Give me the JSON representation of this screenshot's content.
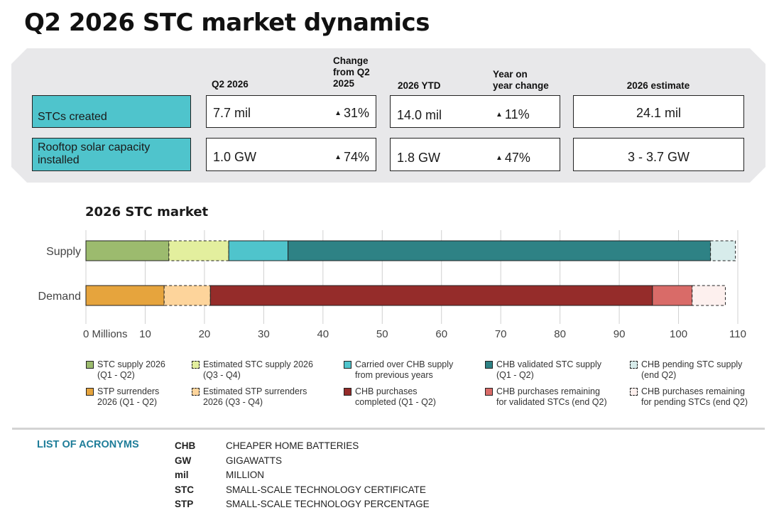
{
  "title": "Q2 2026 STC market dynamics",
  "summary": {
    "headers": {
      "q2": "Q2 2026",
      "change_q2": [
        "Change",
        "from Q2",
        "2025"
      ],
      "ytd": "2026 YTD",
      "yoy": [
        "Year on",
        "year change"
      ],
      "estimate": "2026 estimate"
    },
    "rows": [
      {
        "label": "STCs created",
        "q2": "7.7 mil",
        "q2_change": "31%",
        "ytd": "14.0 mil",
        "yoy": "11%",
        "estimate": "24.1 mil"
      },
      {
        "label": "Rooftop solar capacity installed",
        "q2": "1.0 GW",
        "q2_change": "74%",
        "ytd": "1.8 GW",
        "yoy": "47%",
        "estimate": "3 - 3.7 GW"
      }
    ],
    "up_icon": "triangle-up-icon"
  },
  "chart_data": {
    "type": "bar",
    "orientation": "horizontal",
    "stacked": true,
    "title": "2026 STC market",
    "categories": [
      "Supply",
      "Demand"
    ],
    "xlim": [
      0,
      110
    ],
    "xticks": [
      0,
      10,
      20,
      30,
      40,
      50,
      60,
      70,
      80,
      90,
      100,
      110
    ],
    "xtick_labels": [
      "0 Millions",
      "10",
      "20",
      "30",
      "40",
      "50",
      "60",
      "70",
      "80",
      "90",
      "100",
      "110"
    ],
    "grid": "vertical",
    "segments": [
      {
        "row": "Supply",
        "name": "STC supply 2026 (Q1 - Q2)",
        "value": 14.0,
        "color": "#9cbb6e",
        "dashed": false
      },
      {
        "row": "Supply",
        "name": "Estimated STC supply 2026 (Q3 - Q4)",
        "value": 10.1,
        "color": "#e3ef9e",
        "dashed": true
      },
      {
        "row": "Supply",
        "name": "Carried over CHB supply from previous years",
        "value": 10.0,
        "color": "#4fc4cc",
        "dashed": false
      },
      {
        "row": "Supply",
        "name": "CHB validated STC supply (Q1 - Q2)",
        "value": 71.3,
        "color": "#2e8285",
        "dashed": false
      },
      {
        "row": "Supply",
        "name": "CHB pending STC supply (end Q2)",
        "value": 4.2,
        "color": "#d7eceb",
        "dashed": true
      },
      {
        "row": "Demand",
        "name": "STP surrenders 2026 (Q1 - Q2)",
        "value": 13.2,
        "color": "#e6a43d",
        "dashed": false
      },
      {
        "row": "Demand",
        "name": "Estimated STP surrenders 2026 (Q3 - Q4)",
        "value": 7.8,
        "color": "#fdd49b",
        "dashed": true
      },
      {
        "row": "Demand",
        "name": "CHB purchases completed (Q1 - Q2)",
        "value": 74.6,
        "color": "#952c2a",
        "dashed": false
      },
      {
        "row": "Demand",
        "name": "CHB purchases remaining for validated STCs (end Q2)",
        "value": 6.7,
        "color": "#d96b68",
        "dashed": false
      },
      {
        "row": "Demand",
        "name": "CHB purchases remaining for pending STCs (end Q2)",
        "value": 5.6,
        "color": "#fdf0ee",
        "dashed": true
      }
    ]
  },
  "legend": [
    {
      "lines": [
        "STC supply 2026",
        "(Q1 - Q2)"
      ],
      "color": "#9cbb6e",
      "dashed": false
    },
    {
      "lines": [
        "Estimated STC supply 2026",
        "(Q3 - Q4)"
      ],
      "color": "#e3ef9e",
      "dashed": true
    },
    {
      "lines": [
        "Carried over CHB supply",
        "from previous years"
      ],
      "color": "#4fc4cc",
      "dashed": false
    },
    {
      "lines": [
        "CHB validated STC supply",
        "(Q1 - Q2)"
      ],
      "color": "#2e8285",
      "dashed": false
    },
    {
      "lines": [
        "CHB pending STC supply",
        "(end Q2)"
      ],
      "color": "#d7eceb",
      "dashed": true
    },
    {
      "lines": [
        "STP surrenders",
        "2026 (Q1 - Q2)"
      ],
      "color": "#e6a43d",
      "dashed": false
    },
    {
      "lines": [
        "Estimated STP surrenders",
        "2026 (Q3 - Q4)"
      ],
      "color": "#fdd49b",
      "dashed": true
    },
    {
      "lines": [
        "CHB purchases",
        "completed (Q1 - Q2)"
      ],
      "color": "#952c2a",
      "dashed": false
    },
    {
      "lines": [
        "CHB purchases remaining",
        "for validated STCs (end Q2)"
      ],
      "color": "#d96b68",
      "dashed": false
    },
    {
      "lines": [
        "CHB purchases remaining",
        "for pending STCs (end Q2)"
      ],
      "color": "#fdf0ee",
      "dashed": true
    }
  ],
  "acronyms": {
    "title": "LIST OF ACRONYMS",
    "items": [
      {
        "abbr": "CHB",
        "def": "CHEAPER HOME BATTERIES"
      },
      {
        "abbr": "GW",
        "def": "GIGAWATTS"
      },
      {
        "abbr": "mil",
        "def": "MILLION"
      },
      {
        "abbr": "STC",
        "def": "SMALL-SCALE TECHNOLOGY CERTIFICATE"
      },
      {
        "abbr": "STP",
        "def": "SMALL-SCALE TECHNOLOGY PERCENTAGE"
      }
    ]
  }
}
